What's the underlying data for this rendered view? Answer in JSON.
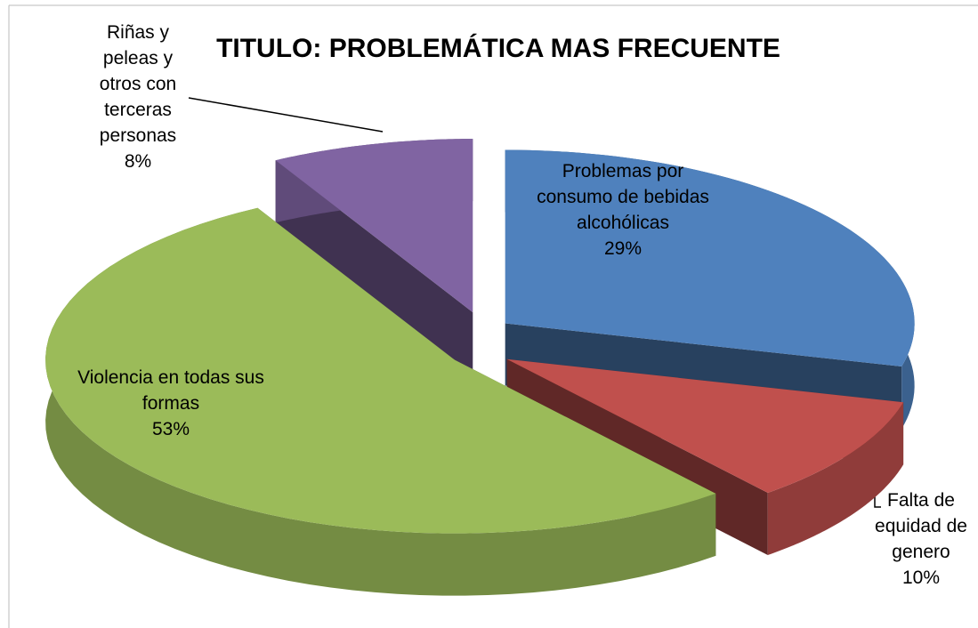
{
  "chart_data": {
    "type": "pie",
    "title": "TITULO: PROBLEMÁTICA MAS FRECUENTE",
    "categories": [
      "Problemas por consumo de bebidas alcohólicas",
      "Falta de equidad de genero",
      "Violencia en todas sus formas",
      "Riñas y peleas y otros con terceras personas"
    ],
    "values": [
      29,
      10,
      53,
      8
    ],
    "value_labels": [
      "29%",
      "10%",
      "53%",
      "8%"
    ],
    "colors": [
      "#4f81bd",
      "#c0504d",
      "#9bbb59",
      "#8064a2"
    ]
  }
}
